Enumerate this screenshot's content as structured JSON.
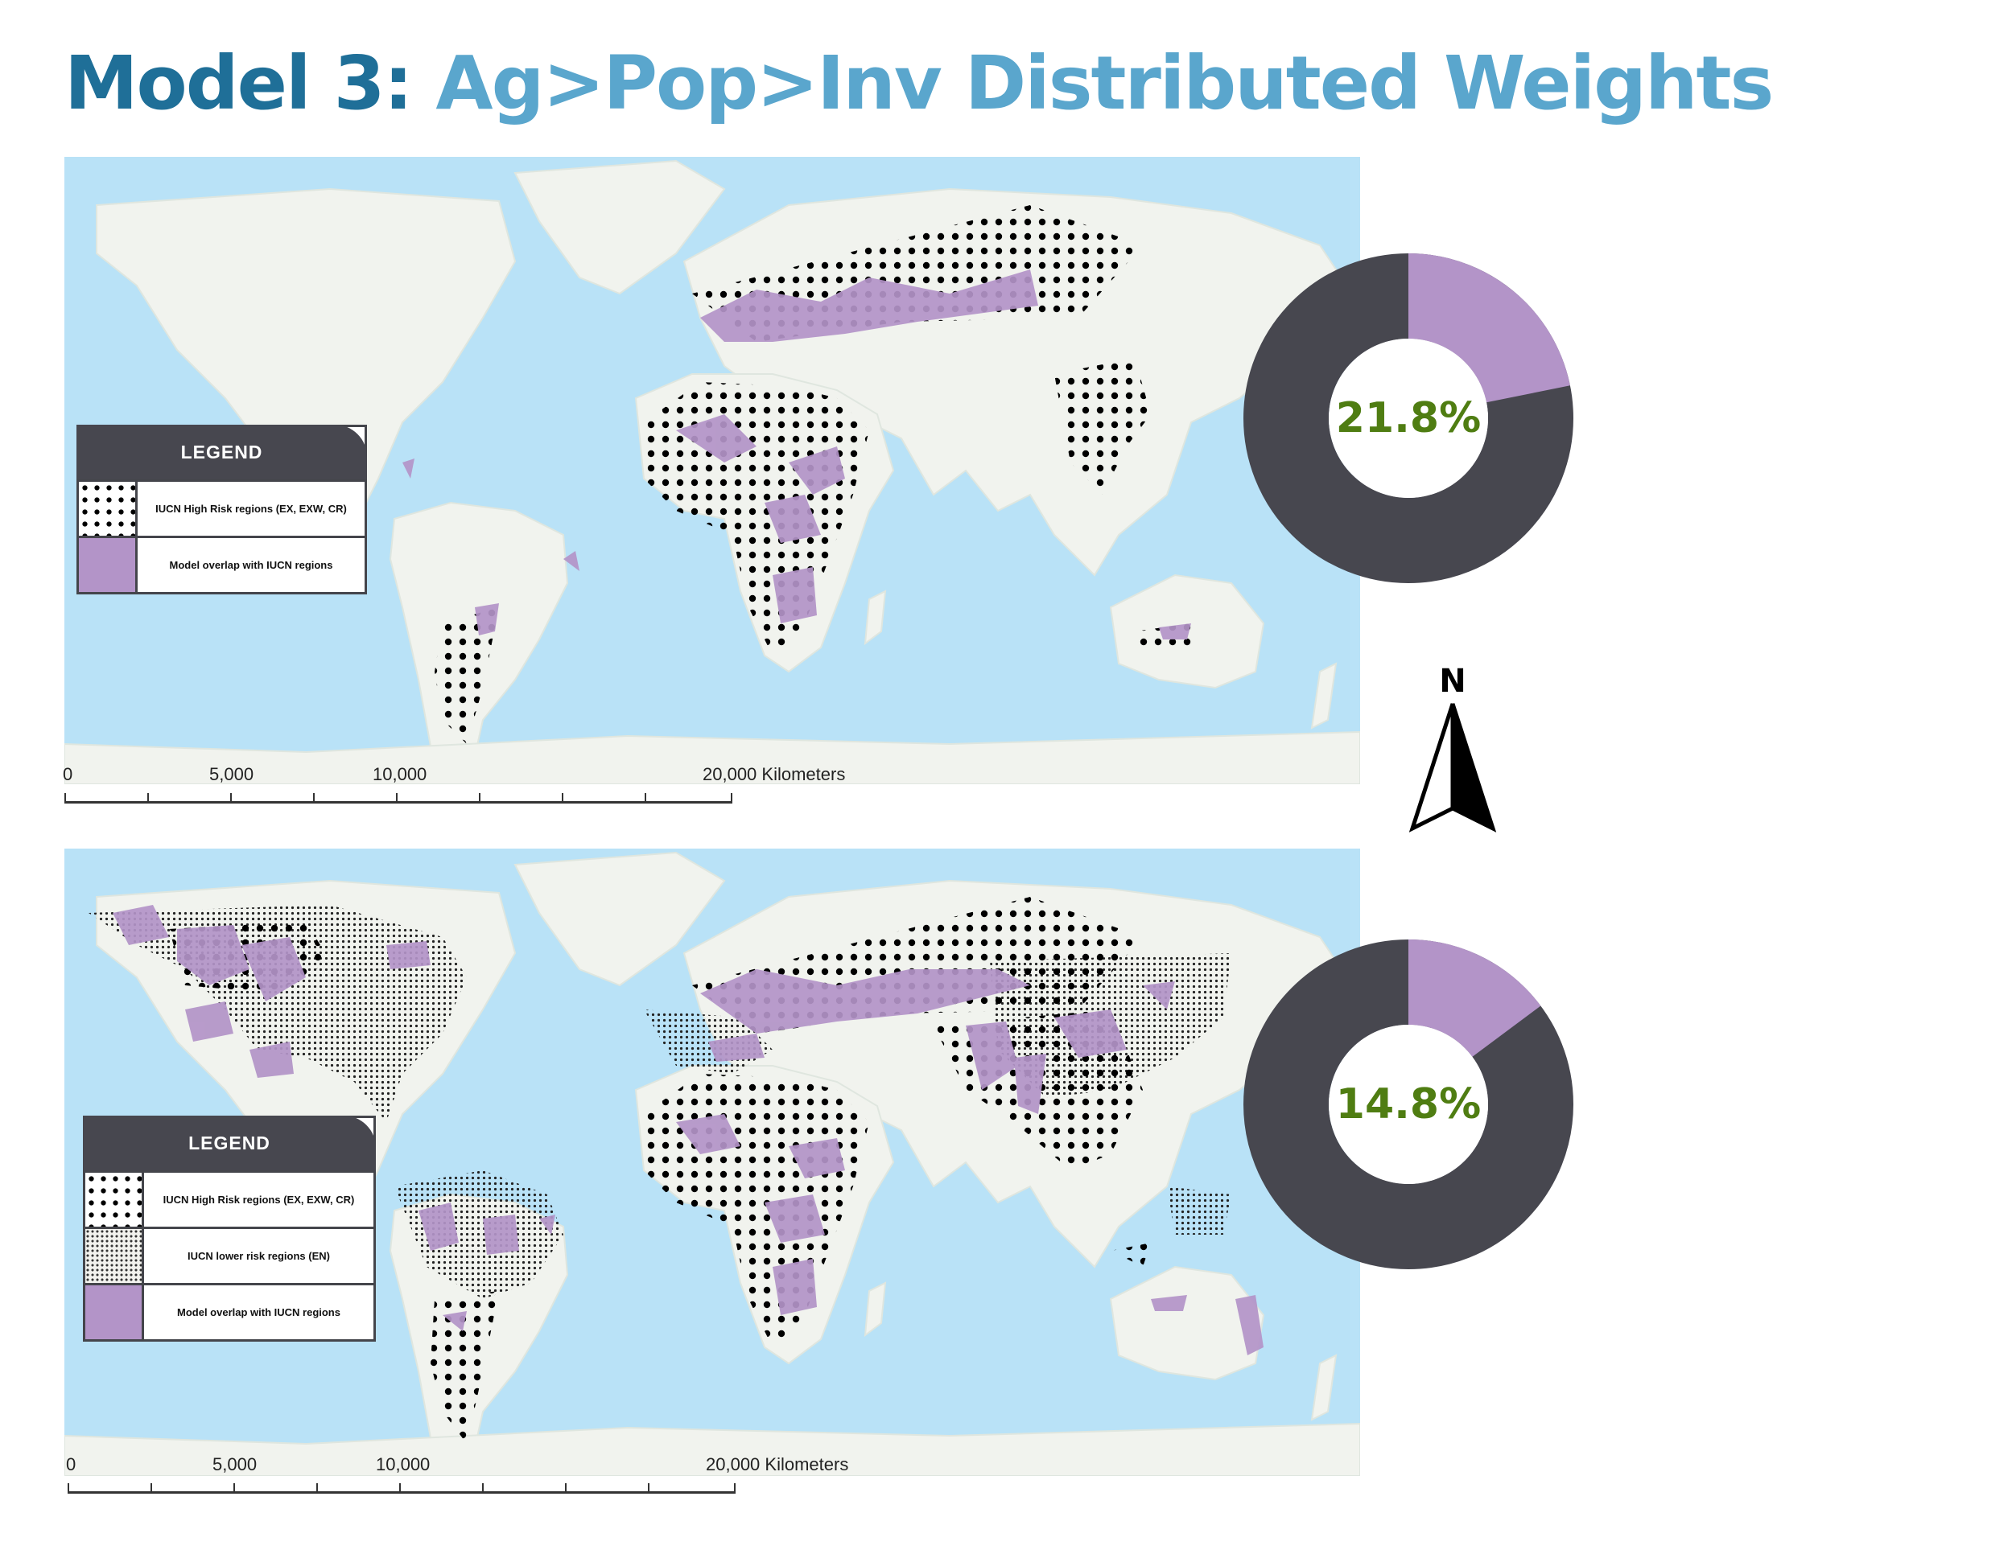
{
  "title": {
    "prefix": "Model 3:",
    "main": "Ag>Pop>Inv Distributed Weights"
  },
  "colors": {
    "title_prefix": "#1f6f98",
    "title_main": "#5aa6cd",
    "ocean": "#b9e2f7",
    "land": "#f1f3ee",
    "overlap": "#b394c8",
    "donut_dark": "#47474f",
    "donut_accent": "#b394c8",
    "percent_text": "#4f7d12"
  },
  "map_top": {
    "legend": {
      "heading": "LEGEND",
      "items": [
        {
          "pattern": "large-dots",
          "label": "IUCN High Risk regions (EX, EXW, CR)"
        },
        {
          "pattern": "purple",
          "label": "Model overlap with IUCN regions"
        }
      ]
    },
    "scale_labels": [
      "0",
      "5,000",
      "10,000",
      "20,000 Kilometers"
    ],
    "donut": {
      "percent_label": "21.8%",
      "value": 21.8
    }
  },
  "map_bottom": {
    "legend": {
      "heading": "LEGEND",
      "items": [
        {
          "pattern": "large-dots",
          "label": "IUCN High Risk regions (EX, EXW, CR)"
        },
        {
          "pattern": "fine-dots",
          "label": "IUCN lower risk regions (EN)"
        },
        {
          "pattern": "purple",
          "label": "Model overlap with IUCN regions"
        }
      ]
    },
    "scale_labels": [
      "0",
      "5,000",
      "10,000",
      "20,000 Kilometers"
    ],
    "donut": {
      "percent_label": "14.8%",
      "value": 14.8
    }
  },
  "north_arrow": {
    "label": "N"
  }
}
